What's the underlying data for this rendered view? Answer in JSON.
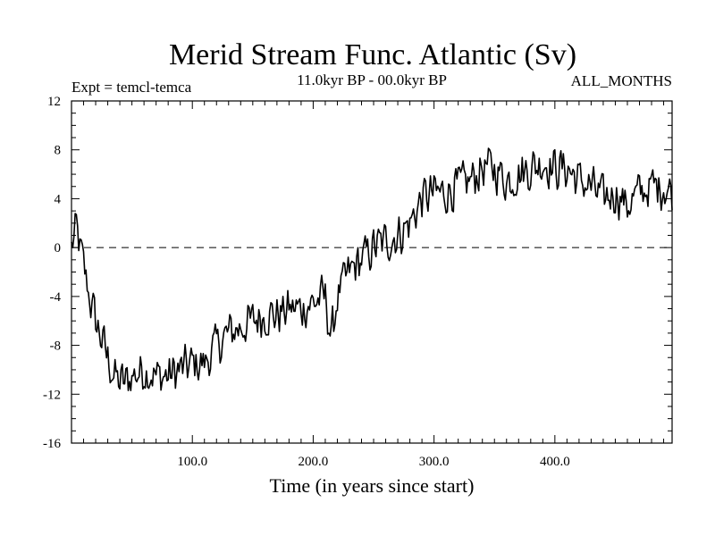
{
  "chart_data": {
    "type": "line",
    "title": "Merid Stream Func. Atlantic (Sv)",
    "experiment_label": "Expt = temcl-temca",
    "period_label": "11.0kyr BP - 00.0kyr BP",
    "season_label": "ALL_MONTHS",
    "xlabel": "Time (in years since start)",
    "ylabel": "",
    "xlim": [
      0,
      497
    ],
    "ylim": [
      -16,
      12
    ],
    "x_ticks": [
      100,
      200,
      300,
      400
    ],
    "x_tick_labels": [
      "100.0",
      "200.0",
      "300.0",
      "400.0"
    ],
    "y_ticks": [
      12,
      8,
      4,
      0,
      -4,
      -8,
      -12,
      -16
    ],
    "y_tick_labels": [
      "12",
      "8",
      "4",
      "0",
      "-4",
      "-8",
      "-12",
      "-16"
    ],
    "reference_line": {
      "y": 0,
      "style": "dashed"
    },
    "series": [
      {
        "name": "Merid Stream Func. Atlantic",
        "x": [
          0,
          4,
          8,
          12,
          16,
          20,
          25,
          30,
          35,
          40,
          45,
          50,
          60,
          70,
          80,
          90,
          100,
          110,
          120,
          130,
          140,
          150,
          160,
          170,
          180,
          190,
          200,
          210,
          215,
          220,
          230,
          240,
          250,
          260,
          270,
          280,
          290,
          300,
          310,
          320,
          330,
          340,
          350,
          360,
          370,
          380,
          390,
          400,
          410,
          420,
          430,
          440,
          450,
          460,
          470,
          480,
          490,
          497
        ],
        "y": [
          0,
          1.5,
          -0.5,
          -2.5,
          -4.5,
          -6,
          -7.5,
          -9,
          -10.5,
          -11,
          -11,
          -10.5,
          -10,
          -10.5,
          -10.5,
          -10,
          -9.5,
          -9.5,
          -8,
          -7,
          -6.5,
          -6,
          -5.5,
          -5.5,
          -5,
          -5,
          -4.5,
          -4,
          -7.5,
          -4,
          -2,
          -1,
          0,
          0.5,
          1,
          2,
          4,
          4.5,
          4.5,
          5,
          5.5,
          6.5,
          6.5,
          5.5,
          6,
          6.5,
          7,
          6.5,
          6.5,
          5.5,
          5,
          4,
          4.5,
          3.5,
          4.5,
          5,
          5,
          4.5
        ]
      }
    ]
  }
}
